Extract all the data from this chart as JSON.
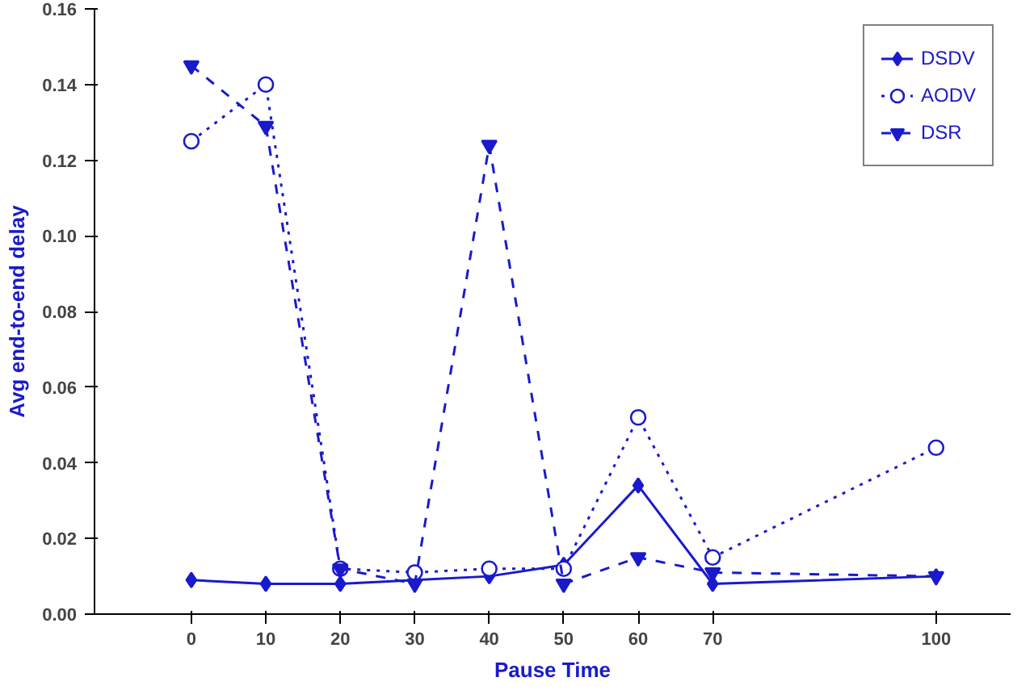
{
  "chart_data": {
    "type": "line",
    "xlabel": "Pause Time",
    "ylabel": "Avg end-to-end delay",
    "x": [
      0,
      10,
      20,
      30,
      40,
      50,
      60,
      70,
      100
    ],
    "series": [
      {
        "name": "DSDV",
        "color": "#1a1acc",
        "marker": "diamond",
        "line_style": "solid",
        "values": [
          0.009,
          0.008,
          0.008,
          0.009,
          0.01,
          0.013,
          0.034,
          0.008,
          0.01
        ]
      },
      {
        "name": "AODV",
        "color": "#1a1acc",
        "marker": "circle",
        "line_style": "dotted",
        "values": [
          0.125,
          0.14,
          0.012,
          0.011,
          0.012,
          0.012,
          0.052,
          0.015,
          0.044
        ]
      },
      {
        "name": "DSR",
        "color": "#1a1acc",
        "marker": "triangle",
        "line_style": "dashed",
        "values": [
          0.145,
          0.129,
          0.012,
          0.008,
          0.124,
          0.008,
          0.015,
          0.011,
          0.01
        ]
      }
    ],
    "xlim": [
      -13,
      110
    ],
    "ylim": [
      0,
      0.16
    ],
    "xticks": [
      0,
      10,
      20,
      30,
      40,
      50,
      60,
      70,
      100
    ],
    "yticks": [
      {
        "value": 0,
        "label": "0.00"
      },
      {
        "value": 0.02,
        "label": "0.02"
      },
      {
        "value": 0.04,
        "label": "0.04"
      },
      {
        "value": 0.06,
        "label": "0.06"
      },
      {
        "value": 0.08,
        "label": "0.08"
      },
      {
        "value": 0.1,
        "label": "0.10"
      },
      {
        "value": 0.12,
        "label": "0.12"
      },
      {
        "value": 0.14,
        "label": "0.14"
      },
      {
        "value": 0.16,
        "label": "0.16"
      }
    ],
    "grid": false,
    "legend": "top right"
  }
}
